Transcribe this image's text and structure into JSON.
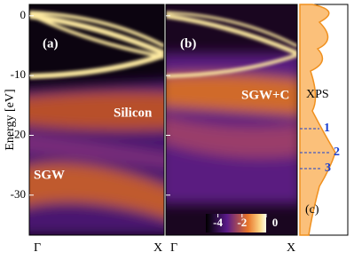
{
  "chart_data": {
    "type": "heatmap",
    "ylabel": "Energy [eV]",
    "ylim": [
      -36.7,
      1.9
    ],
    "yticks": [
      0,
      -10,
      -20,
      -30
    ],
    "panels": [
      {
        "label": "(a)",
        "categories": [
          "Γ",
          "X"
        ],
        "annotations": [
          "Silicon",
          "SGW"
        ]
      },
      {
        "label": "(b)",
        "categories": [
          "Γ",
          "X"
        ],
        "annotations": [
          "SGW+C"
        ]
      },
      {
        "label": "(c)",
        "annotations": [
          "XPS",
          "1",
          "2",
          "3"
        ]
      }
    ],
    "colorbar": {
      "clim": [
        -5,
        0
      ],
      "ticks": [
        -4,
        -2,
        0
      ]
    }
  }
}
